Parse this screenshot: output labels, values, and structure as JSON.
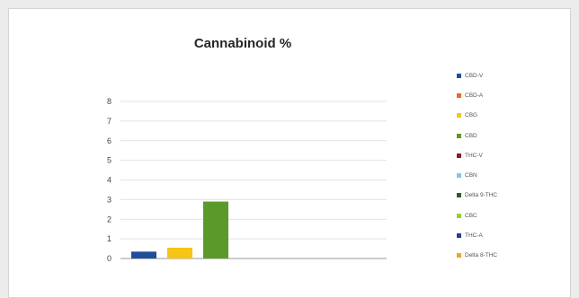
{
  "chart_data": {
    "type": "bar",
    "title": "Cannabinoid %",
    "xlabel": "",
    "ylabel": "",
    "ylim": [
      0,
      8
    ],
    "yticks": [
      "0",
      "1",
      "2",
      "3",
      "4",
      "5",
      "6",
      "7",
      "8"
    ],
    "grid": true,
    "legend_position": "right",
    "categories": [
      ""
    ],
    "series": [
      {
        "name": "CBD-V",
        "color": "#1f4e9c",
        "values": [
          0.35
        ]
      },
      {
        "name": "CBD-A",
        "color": "#f26522",
        "values": [
          0
        ]
      },
      {
        "name": "CBG",
        "color": "#f5c518",
        "values": [
          0.55
        ]
      },
      {
        "name": "CBD",
        "color": "#5a9a2a",
        "values": [
          2.9
        ]
      },
      {
        "name": "THC-V",
        "color": "#8b1a2b",
        "values": [
          0
        ]
      },
      {
        "name": "CBN",
        "color": "#7ec8e3",
        "values": [
          0
        ]
      },
      {
        "name": "Delta 9-THC",
        "color": "#2e5e1a",
        "values": [
          0
        ]
      },
      {
        "name": "CBC",
        "color": "#9acd32",
        "values": [
          0
        ]
      },
      {
        "name": "THC-A",
        "color": "#2a3d8f",
        "values": [
          0
        ]
      },
      {
        "name": "Delta 8-THC",
        "color": "#f7a12c",
        "values": [
          0
        ]
      }
    ]
  }
}
